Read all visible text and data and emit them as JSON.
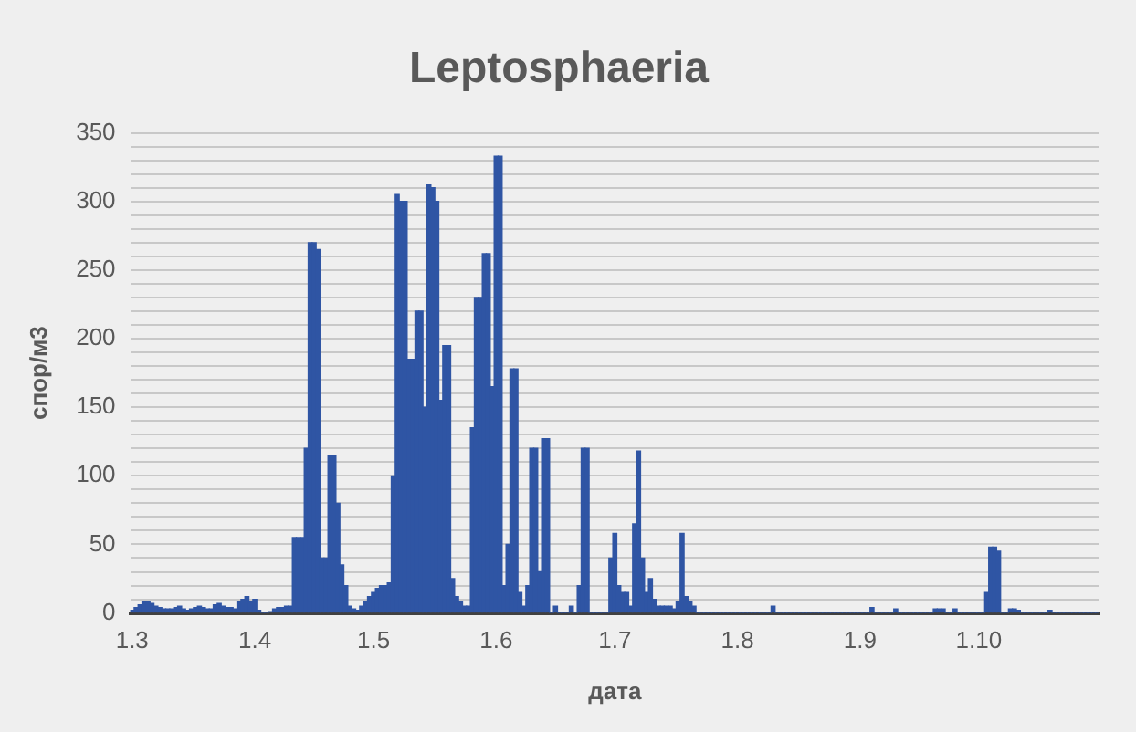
{
  "chart_data": {
    "type": "bar",
    "title": "Leptosphaeria",
    "xlabel": "дата",
    "ylabel": "спор/м3",
    "color": "#2f55a4",
    "grid": "y",
    "legend": false,
    "ylim": [
      0,
      350
    ],
    "yticks": [
      0,
      {
        "value": 10,
        "label": null
      },
      {
        "value": 20,
        "label": null
      },
      {
        "value": 30,
        "label": null
      },
      {
        "value": 40,
        "label": null
      },
      50,
      {
        "value": 60,
        "label": null
      },
      {
        "value": 70,
        "label": null
      },
      {
        "value": 80,
        "label": null
      },
      {
        "value": 90,
        "label": null
      },
      100,
      {
        "value": 110,
        "label": null
      },
      {
        "value": 120,
        "label": null
      },
      {
        "value": 130,
        "label": null
      },
      {
        "value": 140,
        "label": null
      },
      150,
      {
        "value": 160,
        "label": null
      },
      {
        "value": 170,
        "label": null
      },
      {
        "value": 180,
        "label": null
      },
      {
        "value": 190,
        "label": null
      },
      200,
      {
        "value": 210,
        "label": null
      },
      {
        "value": 220,
        "label": null
      },
      {
        "value": 230,
        "label": null
      },
      {
        "value": 240,
        "label": null
      },
      250,
      {
        "value": 260,
        "label": null
      },
      {
        "value": 270,
        "label": null
      },
      {
        "value": 280,
        "label": null
      },
      {
        "value": 290,
        "label": null
      },
      300,
      {
        "value": 310,
        "label": null
      },
      {
        "value": 320,
        "label": null
      },
      {
        "value": 330,
        "label": null
      },
      {
        "value": 340,
        "label": null
      },
      350
    ],
    "categories": [
      "1.3",
      null,
      null,
      null,
      null,
      null,
      null,
      null,
      null,
      null,
      null,
      null,
      null,
      null,
      null,
      null,
      null,
      null,
      null,
      null,
      null,
      null,
      null,
      null,
      null,
      null,
      null,
      null,
      null,
      null,
      null,
      "1.4",
      null,
      null,
      null,
      null,
      null,
      null,
      null,
      null,
      null,
      null,
      null,
      null,
      null,
      null,
      null,
      null,
      null,
      null,
      null,
      null,
      null,
      null,
      null,
      null,
      null,
      null,
      null,
      null,
      null,
      "1.5",
      null,
      null,
      null,
      null,
      null,
      null,
      null,
      null,
      null,
      null,
      null,
      null,
      null,
      null,
      null,
      null,
      null,
      null,
      null,
      null,
      null,
      null,
      null,
      null,
      null,
      null,
      null,
      null,
      null,
      null,
      "1.6",
      null,
      null,
      null,
      null,
      null,
      null,
      null,
      null,
      null,
      null,
      null,
      null,
      null,
      null,
      null,
      null,
      null,
      null,
      null,
      null,
      null,
      null,
      null,
      null,
      null,
      null,
      null,
      null,
      null,
      "1.7",
      null,
      null,
      null,
      null,
      null,
      null,
      null,
      null,
      null,
      null,
      null,
      null,
      null,
      null,
      null,
      null,
      null,
      null,
      null,
      null,
      null,
      null,
      null,
      null,
      null,
      null,
      null,
      null,
      null,
      null,
      "1.8",
      null,
      null,
      null,
      null,
      null,
      null,
      null,
      null,
      null,
      null,
      null,
      null,
      null,
      null,
      null,
      null,
      null,
      null,
      null,
      null,
      null,
      null,
      null,
      null,
      null,
      null,
      null,
      null,
      null,
      null,
      "1.9",
      null,
      null,
      null,
      null,
      null,
      null,
      null,
      null,
      null,
      null,
      null,
      null,
      null,
      null,
      null,
      null,
      null,
      null,
      null,
      null,
      null,
      null,
      null,
      null,
      null,
      null,
      null,
      null,
      null,
      "1.10",
      null,
      null,
      null,
      null,
      null,
      null,
      null,
      null,
      null,
      null,
      null,
      null,
      null,
      null,
      null,
      null,
      null,
      null,
      null,
      null,
      null,
      null,
      null,
      null,
      null,
      null,
      null,
      null,
      null,
      null
    ],
    "values": [
      2,
      4,
      6,
      8,
      8,
      7,
      5,
      4,
      3,
      3,
      3,
      4,
      5,
      3,
      2,
      3,
      4,
      5,
      4,
      3,
      3,
      6,
      7,
      5,
      4,
      4,
      3,
      8,
      10,
      12,
      8,
      10,
      2,
      0,
      0,
      1,
      3,
      4,
      4,
      5,
      5,
      55,
      55,
      55,
      120,
      270,
      270,
      265,
      40,
      40,
      115,
      115,
      80,
      35,
      20,
      5,
      3,
      2,
      5,
      8,
      12,
      15,
      18,
      20,
      20,
      22,
      100,
      305,
      300,
      300,
      185,
      185,
      220,
      220,
      150,
      312,
      310,
      300,
      155,
      195,
      195,
      25,
      12,
      8,
      5,
      5,
      135,
      230,
      230,
      262,
      262,
      165,
      333,
      333,
      20,
      50,
      178,
      178,
      15,
      5,
      20,
      120,
      120,
      30,
      127,
      127,
      0,
      5,
      0,
      0,
      0,
      5,
      0,
      20,
      120,
      120,
      0,
      0,
      0,
      0,
      0,
      40,
      58,
      20,
      15,
      15,
      5,
      65,
      118,
      40,
      15,
      25,
      10,
      5,
      5,
      5,
      5,
      3,
      8,
      58,
      12,
      8,
      5,
      0,
      0,
      0,
      0,
      0,
      0,
      0,
      0,
      0,
      0,
      0,
      0,
      0,
      0,
      0,
      0,
      0,
      0,
      0,
      5,
      0,
      0,
      0,
      0,
      0,
      0,
      0,
      0,
      0,
      0,
      0,
      0,
      0,
      0,
      0,
      0,
      0,
      0,
      0,
      0,
      0,
      0,
      0,
      0,
      4,
      0,
      0,
      0,
      0,
      0,
      3,
      0,
      0,
      0,
      0,
      0,
      0,
      0,
      0,
      0,
      3,
      3,
      3,
      0,
      0,
      3,
      0,
      0,
      0,
      0,
      0,
      0,
      0,
      15,
      48,
      48,
      45,
      0,
      0,
      3,
      3,
      2,
      0,
      0,
      0,
      0,
      0,
      0,
      0,
      2,
      0,
      0,
      0,
      0,
      0,
      0,
      0,
      0,
      0,
      0,
      0,
      0
    ]
  }
}
